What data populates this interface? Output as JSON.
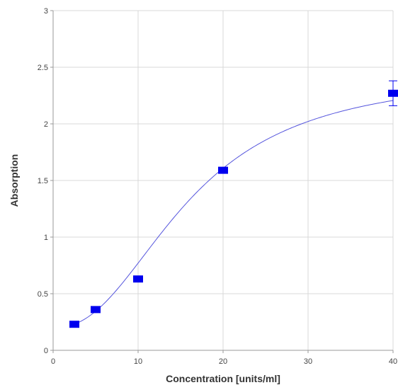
{
  "chart_data": {
    "type": "scatter",
    "title": "",
    "xlabel": "Concentration [units/ml]",
    "ylabel": "Absorption",
    "xlim": [
      0,
      40
    ],
    "ylim": [
      0,
      3
    ],
    "x_ticks": [
      "0",
      "10",
      "20",
      "30",
      "40"
    ],
    "y_ticks": [
      "0",
      "0.5",
      "1",
      "1.5",
      "2",
      "2.5",
      "3"
    ],
    "grid": true,
    "series": [
      {
        "x": [
          2.5,
          5,
          10,
          20,
          40
        ],
        "y": [
          0.23,
          0.36,
          0.63,
          1.59,
          2.27
        ],
        "error": [
          0,
          0,
          0,
          0,
          0.11
        ],
        "color": "#0000ee"
      }
    ],
    "fit_curve": {
      "type": "4PL",
      "bottom": 0.2,
      "top": 2.45,
      "ec50": 16,
      "hill": 2.3,
      "color": "#5555dd"
    },
    "colors": {
      "grid": "#d9d9d9",
      "axis": "#999999",
      "marker": "#0000ee",
      "curve": "#5555dd"
    }
  }
}
